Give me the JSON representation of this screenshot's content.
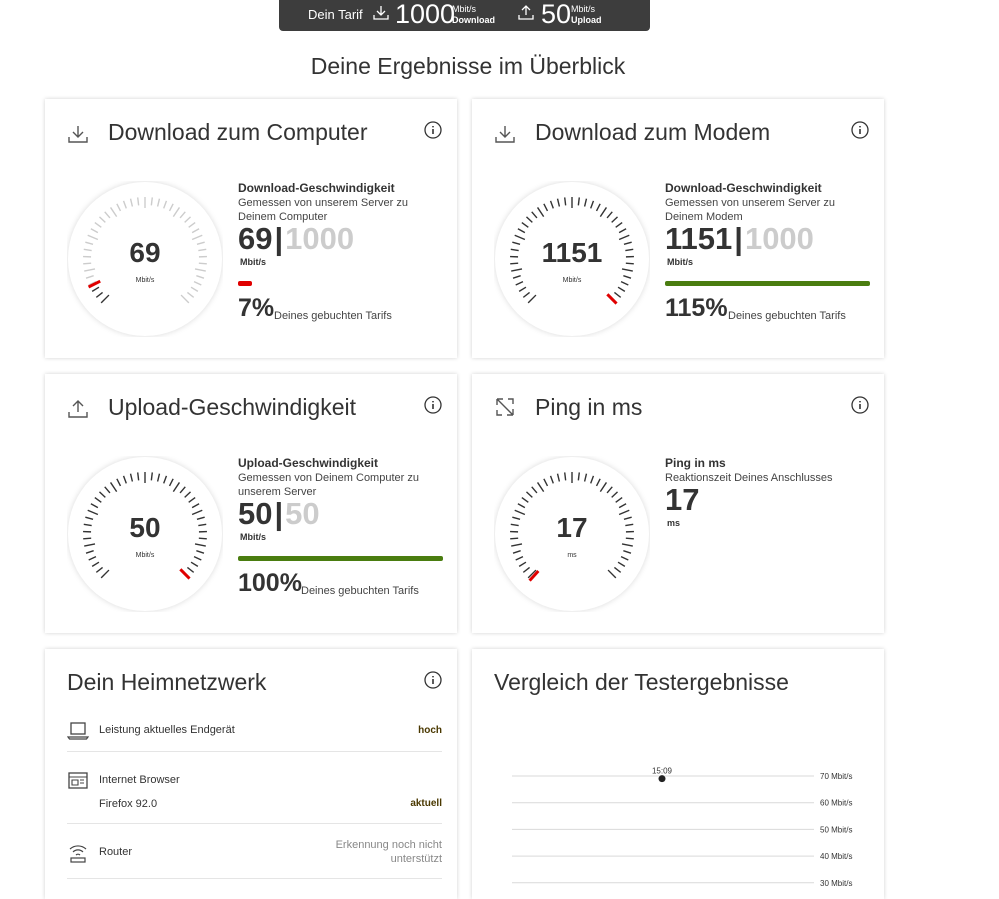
{
  "tariff": {
    "label": "Dein Tarif",
    "download_value": "1000",
    "download_unit": "Mbit/s",
    "download_label": "Download",
    "upload_value": "50",
    "upload_unit": "Mbit/s",
    "upload_label": "Upload"
  },
  "page_title": "Deine Ergebnisse im Überblick",
  "colors": {
    "green": "#4a7d10",
    "red": "#e00000",
    "dark": "#3d3d3d"
  },
  "cards": {
    "download_computer": {
      "title": "Download zum Computer",
      "gauge_value": "69",
      "gauge_unit": "Mbit/s",
      "metric_title": "Download-Geschwindigkeit",
      "metric_desc": "Gemessen von unserem Server zu Deinem Computer",
      "measured": "69",
      "separator": "|",
      "booked": "1000",
      "unit": "Mbit/s",
      "percent": "7%",
      "percent_label": "Deines gebuchten Tarifs",
      "bar_fraction": 0.07,
      "gauge_fraction": 0.069
    },
    "download_modem": {
      "title": "Download zum Modem",
      "gauge_value": "1151",
      "gauge_unit": "Mbit/s",
      "metric_title": "Download-Geschwindigkeit",
      "metric_desc": "Gemessen von unserem Server zu Deinem Modem",
      "measured": "1151",
      "separator": "|",
      "booked": "1000",
      "unit": "Mbit/s",
      "percent": "115%",
      "percent_label": "Deines gebuchten Tarifs",
      "bar_fraction": 1.0,
      "gauge_fraction": 1.0
    },
    "upload": {
      "title": "Upload-Geschwindigkeit",
      "gauge_value": "50",
      "gauge_unit": "Mbit/s",
      "metric_title": "Upload-Geschwindigkeit",
      "metric_desc": "Gemessen von Deinem Computer zu unserem Server",
      "measured": "50",
      "separator": "|",
      "booked": "50",
      "unit": "Mbit/s",
      "percent": "100%",
      "percent_label": "Deines gebuchten Tarifs",
      "bar_fraction": 1.0,
      "gauge_fraction": 1.0
    },
    "ping": {
      "title": "Ping in ms",
      "gauge_value": "17",
      "gauge_unit": "ms",
      "metric_title": "Ping in ms",
      "metric_desc": "Reaktionszeit Deines Anschlusses",
      "measured": "17",
      "unit": "ms",
      "gauge_fraction": 0.0
    }
  },
  "heimnetz": {
    "title": "Dein Heimnetzwerk",
    "rows": [
      {
        "icon": "laptop-icon",
        "label": "Leistung aktuelles Endgerät",
        "value": "hoch"
      },
      {
        "icon": "browser-icon",
        "label": "Internet Browser",
        "sub": "Firefox 92.0",
        "value": "aktuell"
      },
      {
        "icon": "router-icon",
        "label": "Router",
        "value": "Erkennung noch nicht unterstützt"
      }
    ]
  },
  "vergleich": {
    "title": "Vergleich der Testergebnisse"
  },
  "chart_data": {
    "type": "scatter",
    "title": "Vergleich der Testergebnisse",
    "y_ticks": [
      "70 Mbit/s",
      "60 Mbit/s",
      "50 Mbit/s",
      "40 Mbit/s",
      "30 Mbit/s"
    ],
    "ylim": [
      30,
      70
    ],
    "points": [
      {
        "label": "15:09",
        "y": 69
      }
    ]
  }
}
